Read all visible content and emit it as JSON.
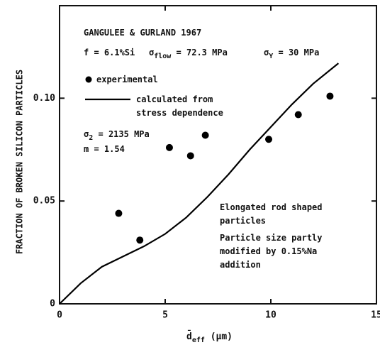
{
  "chart_data": {
    "type": "scatter",
    "xlabel": {
      "base": "d̄",
      "sub": "eff",
      "unit": " (μm)"
    },
    "ylabel": "FRACTION OF BROKEN SILICON PARTICLES",
    "xlim": [
      0,
      15
    ],
    "ylim": [
      0,
      0.145
    ],
    "xticks": [
      0,
      5,
      10,
      15
    ],
    "yticks": [
      0,
      0.05,
      {
        "value": 0.1,
        "label": "0.10"
      }
    ],
    "series": [
      {
        "name": "experimental",
        "type": "scatter",
        "color": "#000000",
        "x": [
          2.8,
          3.8,
          5.2,
          6.2,
          6.9,
          9.9,
          11.3,
          12.8
        ],
        "values": [
          0.044,
          0.031,
          0.076,
          0.072,
          0.082,
          0.08,
          0.092,
          0.101
        ]
      },
      {
        "name": "calculated from stress dependence",
        "type": "line",
        "color": "#000000",
        "x": [
          0,
          1,
          2,
          3,
          4,
          5,
          6,
          7,
          8,
          9,
          10,
          11,
          12,
          13.2
        ],
        "values": [
          0,
          0.01,
          0.018,
          0.023,
          0.028,
          0.034,
          0.042,
          0.052,
          0.063,
          0.075,
          0.086,
          0.097,
          0.107,
          0.117
        ]
      }
    ],
    "annotations": [
      {
        "parts": [
          "GANGULEE & GURLAND 1967"
        ]
      },
      {
        "parts": [
          "f = 6.1%Si"
        ]
      },
      {
        "parts": [
          "σ",
          {
            "sub": "flow"
          },
          " = 72.3 MPa"
        ]
      },
      {
        "parts": [
          "σ",
          {
            "sub": "Y"
          },
          " = 30 MPa"
        ]
      },
      {
        "parts": [
          "σ",
          {
            "sub": "2"
          },
          " = 2135 MPa"
        ]
      },
      {
        "parts": [
          "m = 1.54"
        ]
      },
      {
        "parts": [
          "Elongated rod shaped particles"
        ]
      },
      {
        "parts": [
          "Particle size partly modified by 0.15%Na addition"
        ]
      }
    ]
  }
}
